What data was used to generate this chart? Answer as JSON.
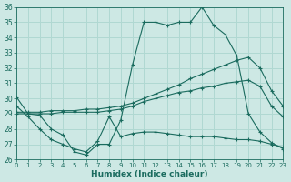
{
  "background_color": "#cde8e4",
  "grid_color": "#b0d8d2",
  "line_color": "#1a6b5e",
  "xlabel": "Humidex (Indice chaleur)",
  "ylim": [
    26,
    36
  ],
  "xlim": [
    0,
    23
  ],
  "yticks": [
    26,
    27,
    28,
    29,
    30,
    31,
    32,
    33,
    34,
    35,
    36
  ],
  "xticks": [
    0,
    1,
    2,
    3,
    4,
    5,
    6,
    7,
    8,
    9,
    10,
    11,
    12,
    13,
    14,
    15,
    16,
    17,
    18,
    19,
    20,
    21,
    22,
    23
  ],
  "line1_x": [
    0,
    1,
    2,
    3,
    4,
    5,
    6,
    7,
    8,
    9,
    10,
    11,
    12,
    13,
    14,
    15,
    16,
    17,
    18,
    19,
    20,
    21,
    22,
    23
  ],
  "line1_y": [
    30.1,
    29.0,
    28.9,
    28.0,
    27.6,
    26.5,
    26.3,
    27.0,
    27.0,
    28.6,
    32.2,
    35.0,
    35.0,
    34.8,
    35.0,
    35.0,
    36.0,
    34.8,
    34.2,
    32.8,
    29.0,
    27.8,
    27.1,
    26.7
  ],
  "line2_x": [
    0,
    1,
    2,
    3,
    4,
    5,
    6,
    7,
    8,
    9,
    10,
    11,
    12,
    13,
    14,
    15,
    16,
    17,
    18,
    19,
    20,
    21,
    22,
    23
  ],
  "line2_y": [
    29.1,
    29.1,
    29.1,
    29.2,
    29.2,
    29.2,
    29.3,
    29.3,
    29.4,
    29.5,
    29.7,
    30.0,
    30.3,
    30.6,
    30.9,
    31.3,
    31.6,
    31.9,
    32.2,
    32.5,
    32.7,
    32.0,
    30.5,
    29.5
  ],
  "line3_x": [
    0,
    1,
    2,
    3,
    4,
    5,
    6,
    7,
    8,
    9,
    10,
    11,
    12,
    13,
    14,
    15,
    16,
    17,
    18,
    19,
    20,
    21,
    22,
    23
  ],
  "line3_y": [
    29.0,
    29.0,
    29.0,
    29.0,
    29.1,
    29.1,
    29.1,
    29.1,
    29.2,
    29.3,
    29.5,
    29.8,
    30.0,
    30.2,
    30.4,
    30.5,
    30.7,
    30.8,
    31.0,
    31.1,
    31.2,
    30.8,
    29.5,
    28.8
  ],
  "line4_x": [
    0,
    1,
    2,
    3,
    4,
    5,
    6,
    7,
    8,
    9,
    10,
    11,
    12,
    13,
    14,
    15,
    16,
    17,
    18,
    19,
    20,
    21,
    22,
    23
  ],
  "line4_y": [
    29.5,
    28.8,
    28.0,
    27.3,
    27.0,
    26.7,
    26.5,
    27.2,
    28.8,
    27.5,
    27.7,
    27.8,
    27.8,
    27.7,
    27.6,
    27.5,
    27.5,
    27.5,
    27.4,
    27.3,
    27.3,
    27.2,
    27.0,
    26.8
  ]
}
